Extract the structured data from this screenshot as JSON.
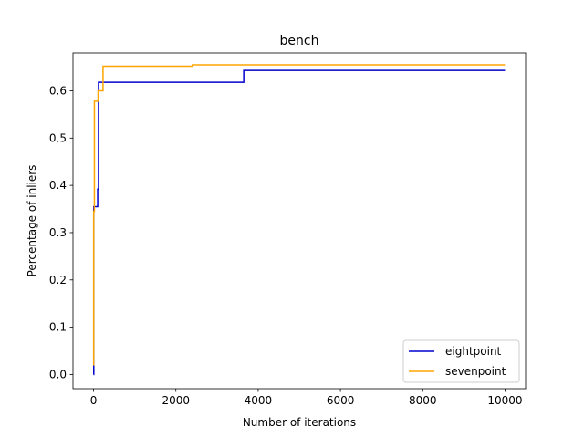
{
  "chart_data": {
    "type": "line",
    "title": "bench",
    "xlabel": "Number of iterations",
    "ylabel": "Percentage of inliers",
    "xlim": [
      -500,
      10500
    ],
    "ylim": [
      -0.03,
      0.68
    ],
    "xticks": [
      0,
      2000,
      4000,
      6000,
      8000,
      10000
    ],
    "yticks": [
      0.0,
      0.1,
      0.2,
      0.3,
      0.4,
      0.5,
      0.6
    ],
    "ytick_labels": [
      "0.0",
      "0.1",
      "0.2",
      "0.3",
      "0.4",
      "0.5",
      "0.6"
    ],
    "grid": false,
    "legend_position": "bottom-right",
    "series": [
      {
        "name": "eightpoint",
        "color": "#0000cd",
        "step": "post",
        "x": [
          0,
          5,
          60,
          100,
          120,
          240,
          3650,
          10000
        ],
        "y": [
          0.0,
          0.355,
          0.355,
          0.392,
          0.618,
          0.618,
          0.643,
          0.643
        ]
      },
      {
        "name": "sevenpoint",
        "color": "#ffa500",
        "step": "post",
        "x": [
          0,
          3,
          20,
          110,
          200,
          230,
          2400,
          10000
        ],
        "y": [
          0.02,
          0.345,
          0.578,
          0.6,
          0.6,
          0.652,
          0.655,
          0.655
        ]
      }
    ]
  }
}
